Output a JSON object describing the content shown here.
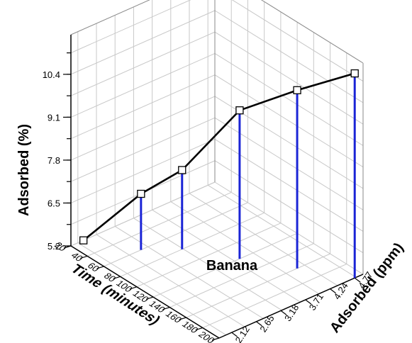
{
  "chart_data": {
    "type": "line",
    "projection": "3d",
    "annotation": "Banana",
    "xlabel": "Time (minutes)",
    "ylabel": "Adsorbed (ppm)",
    "zlabel": "Adsorbed (%)",
    "xlim": [
      20,
      200
    ],
    "ylim": [
      1.85,
      4.95
    ],
    "zlim": [
      5.2,
      11.6
    ],
    "x_ticks": [
      20,
      40,
      60,
      80,
      100,
      120,
      140,
      160,
      180,
      200
    ],
    "y_ticks": [
      2.12,
      2.65,
      3.18,
      3.71,
      4.24,
      4.77
    ],
    "z_ticks": [
      5.2,
      6.5,
      7.8,
      9.1,
      10.4
    ],
    "x_tick_labels": [
      "20",
      "40",
      "60",
      "80",
      "100",
      "120",
      "140",
      "160",
      "180",
      "200"
    ],
    "y_tick_labels": [
      "2.12",
      "2.65",
      "3.18",
      "3.71",
      "4.24",
      "4.77"
    ],
    "z_tick_labels": [
      "5.2",
      "6.5",
      "7.8",
      "9.1",
      "10.4"
    ],
    "points": [
      {
        "x": 20,
        "y": 2.12,
        "z": 5.2
      },
      {
        "x": 60,
        "y": 2.65,
        "z": 6.9
      },
      {
        "x": 80,
        "y": 3.18,
        "z": 7.6
      },
      {
        "x": 120,
        "y": 3.71,
        "z": 9.7
      },
      {
        "x": 160,
        "y": 4.24,
        "z": 10.6
      },
      {
        "x": 200,
        "y": 4.77,
        "z": 11.4
      }
    ],
    "grid": true,
    "drop_lines": true,
    "colors": {
      "line": "#000000",
      "drop_line": "#1a24d6",
      "marker_fill": "#ffffff",
      "grid": "#c8c8c8"
    }
  }
}
